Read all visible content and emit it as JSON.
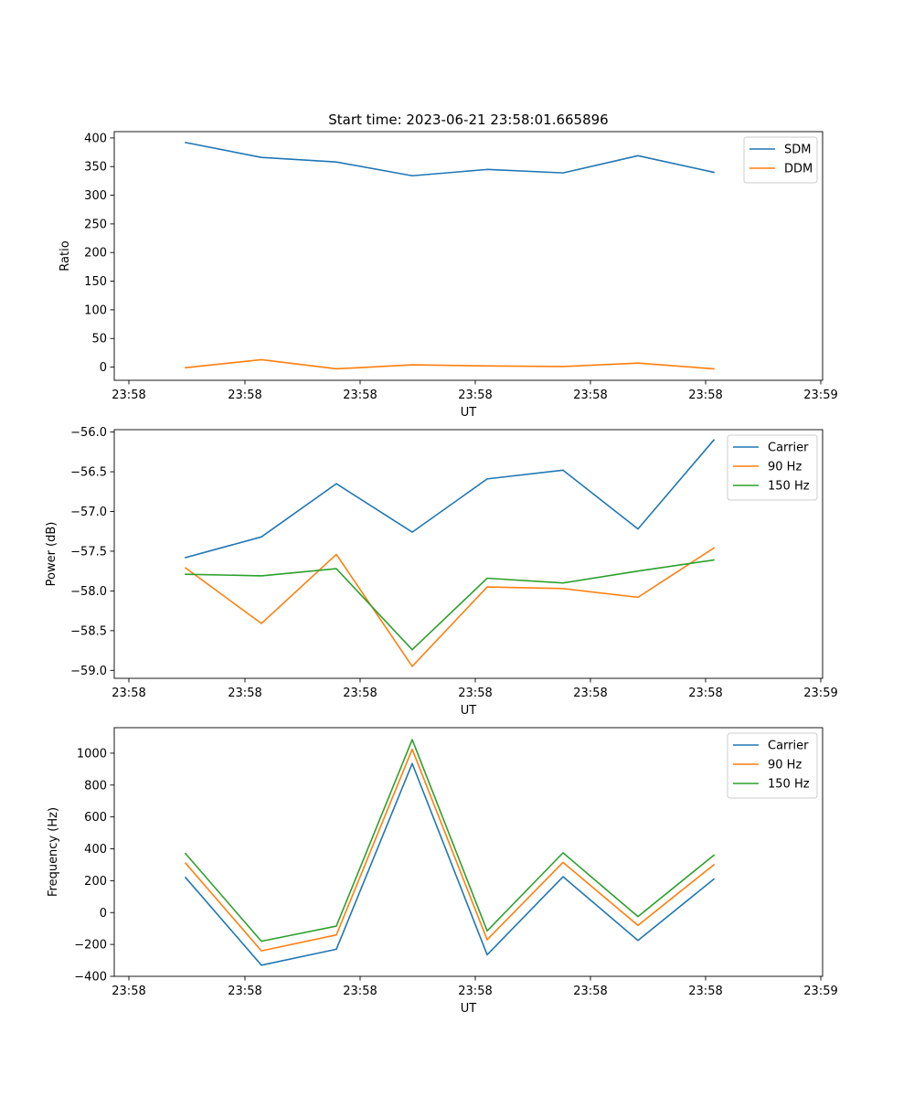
{
  "figure": {
    "title": "Start time: 2023-06-21 23:58:01.665896"
  },
  "colors": {
    "c0": "#1f77b4",
    "c1": "#ff7f0e",
    "c2": "#2ca02c"
  },
  "chart_data": [
    {
      "type": "line",
      "title": "Start time: 2023-06-21 23:58:01.665896",
      "xlabel": "UT",
      "ylabel": "Ratio",
      "x_ticks": [
        "23:58",
        "23:58",
        "23:58",
        "23:58",
        "23:58",
        "23:58",
        "23:59"
      ],
      "y_ticks": [
        0,
        50,
        100,
        150,
        200,
        250,
        300,
        350,
        400
      ],
      "ylim": [
        -23,
        411
      ],
      "grid": false,
      "legend_position": "top-right",
      "series": [
        {
          "name": "SDM",
          "color": "#1f77b4",
          "values": [
            392,
            366,
            358,
            334,
            345,
            339,
            369,
            340
          ]
        },
        {
          "name": "DDM",
          "color": "#ff7f0e",
          "values": [
            -1,
            13,
            -3,
            4,
            2,
            1,
            7,
            -3
          ]
        }
      ]
    },
    {
      "type": "line",
      "xlabel": "UT",
      "ylabel": "Power (dB)",
      "x_ticks": [
        "23:58",
        "23:58",
        "23:58",
        "23:58",
        "23:58",
        "23:58",
        "23:59"
      ],
      "y_ticks": [
        "−59.0",
        "−58.5",
        "−58.0",
        "−57.5",
        "−57.0",
        "−56.5",
        "−56.0"
      ],
      "y_tick_values": [
        -59.0,
        -58.5,
        -58.0,
        -57.5,
        -57.0,
        -56.5,
        -56.0
      ],
      "ylim": [
        -59.1,
        -55.97
      ],
      "grid": false,
      "legend_position": "top-right",
      "series": [
        {
          "name": "Carrier",
          "color": "#1f77b4",
          "values": [
            -57.58,
            -57.32,
            -56.65,
            -57.26,
            -56.59,
            -56.48,
            -57.22,
            -56.1
          ]
        },
        {
          "name": "90 Hz",
          "color": "#ff7f0e",
          "values": [
            -57.71,
            -58.41,
            -57.54,
            -58.95,
            -57.95,
            -57.97,
            -58.08,
            -57.46
          ]
        },
        {
          "name": "150 Hz",
          "color": "#2ca02c",
          "values": [
            -57.79,
            -57.81,
            -57.72,
            -58.74,
            -57.84,
            -57.9,
            -57.75,
            -57.61
          ]
        }
      ]
    },
    {
      "type": "line",
      "xlabel": "UT",
      "ylabel": "Frequency (Hz)",
      "x_ticks": [
        "23:58",
        "23:58",
        "23:58",
        "23:58",
        "23:58",
        "23:58",
        "23:59"
      ],
      "y_ticks": [
        "−400",
        "−200",
        "0",
        "200",
        "400",
        "600",
        "800",
        "1000"
      ],
      "y_tick_values": [
        -400,
        -200,
        0,
        200,
        400,
        600,
        800,
        1000
      ],
      "ylim": [
        -400,
        1160
      ],
      "grid": false,
      "legend_position": "top-right",
      "series": [
        {
          "name": "Carrier",
          "color": "#1f77b4",
          "values": [
            220,
            -330,
            -230,
            935,
            -265,
            225,
            -175,
            210
          ]
        },
        {
          "name": "90 Hz",
          "color": "#ff7f0e",
          "values": [
            310,
            -240,
            -140,
            1025,
            -170,
            315,
            -80,
            300
          ]
        },
        {
          "name": "150 Hz",
          "color": "#2ca02c",
          "values": [
            370,
            -180,
            -85,
            1085,
            -115,
            375,
            -25,
            360
          ]
        }
      ]
    }
  ]
}
